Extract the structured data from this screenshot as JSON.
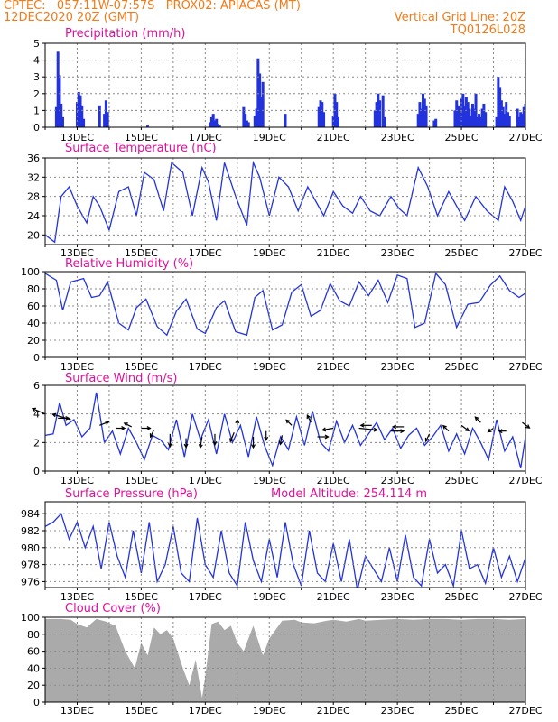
{
  "header": {
    "line1_left": "CPTEC:   057:11W-07:57S   PROX02: APIACAS (MT)",
    "line2_left": "12DEC2020 20Z (GMT)",
    "line2_right": "Vertical Grid Line: 20Z",
    "line3_right": "TQ0126L028"
  },
  "colors": {
    "header_text": "#f07b1a",
    "panel_title": "#e0109a",
    "series": "#2233dd",
    "cloud_fill": "#aaaaaa",
    "wind_arrow": "#000000",
    "grid": "#888888"
  },
  "x_ticks": [
    "13DEC",
    "15DEC",
    "17DEC",
    "19DEC",
    "21DEC",
    "23DEC",
    "25DEC",
    "27DEC"
  ],
  "chart_data": [
    {
      "id": "precip",
      "type": "bar",
      "title": "Precipitation (mm/h)",
      "ylim": [
        0,
        5
      ],
      "yticks": [
        0,
        1,
        2,
        3,
        4,
        5
      ],
      "grid": true,
      "x": [
        0.35,
        0.4,
        0.45,
        0.5,
        0.55,
        1.0,
        1.05,
        1.1,
        1.15,
        1.2,
        1.7,
        1.85,
        1.9,
        1.95,
        3.2,
        5.15,
        5.2,
        5.25,
        5.3,
        5.35,
        5.4,
        5.45,
        6.2,
        6.25,
        6.3,
        6.35,
        6.55,
        6.6,
        6.65,
        6.7,
        6.75,
        6.8,
        7.5,
        8.55,
        8.6,
        8.65,
        8.7,
        9.0,
        9.05,
        9.1,
        9.15,
        10.3,
        10.35,
        10.4,
        10.45,
        10.55,
        10.6,
        11.65,
        11.7,
        11.75,
        11.8,
        11.85,
        11.9,
        12.15,
        12.2,
        12.8,
        12.85,
        12.9,
        12.95,
        13.0,
        13.05,
        13.1,
        13.15,
        13.2,
        13.25,
        13.3,
        13.35,
        13.4,
        13.45,
        13.5,
        13.55,
        13.6,
        13.65,
        13.7,
        13.75,
        14.1,
        14.15,
        14.2,
        14.25,
        14.3,
        14.35,
        14.4,
        14.45,
        14.5,
        14.75,
        14.8,
        14.85,
        14.9,
        14.95,
        15.0,
        15.05,
        15.1
      ],
      "values": [
        1.2,
        4.5,
        3.1,
        1.4,
        0.6,
        1.5,
        2.1,
        1.9,
        1.3,
        0.5,
        1.3,
        0.8,
        1.6,
        0.9,
        0.1,
        0.3,
        0.6,
        0.8,
        0.4,
        0.5,
        0.2,
        0.1,
        1.2,
        0.8,
        0.4,
        0.3,
        0.7,
        1.1,
        4.1,
        3.2,
        1.8,
        2.7,
        0.8,
        1.2,
        1.6,
        1.5,
        0.9,
        0.7,
        2.0,
        1.5,
        0.6,
        1.0,
        1.5,
        2.0,
        1.6,
        1.9,
        0.6,
        0.8,
        1.5,
        1.1,
        2.0,
        1.7,
        1.3,
        0.4,
        0.5,
        1.0,
        1.6,
        1.3,
        0.8,
        1.7,
        2.0,
        1.3,
        1.8,
        1.5,
        1.1,
        0.7,
        1.4,
        1.1,
        2.0,
        0.6,
        0.8,
        0.6,
        1.1,
        1.4,
        0.9,
        0.6,
        3.0,
        2.4,
        1.6,
        1.2,
        0.8,
        1.5,
        0.9,
        0.7,
        1.1,
        0.6,
        0.9,
        0.8,
        1.2,
        1.4,
        1.0,
        0.6
      ]
    },
    {
      "id": "temp",
      "type": "line",
      "title": "Surface Temperature (nC)",
      "ylim": [
        18,
        36
      ],
      "yticks": [
        20,
        24,
        28,
        32,
        36
      ],
      "grid": true,
      "x": [
        0,
        0.3,
        0.5,
        0.75,
        1.0,
        1.3,
        1.5,
        1.7,
        2.0,
        2.3,
        2.6,
        2.85,
        3.1,
        3.4,
        3.7,
        3.95,
        4.3,
        4.6,
        4.9,
        5.1,
        5.35,
        5.6,
        5.95,
        6.3,
        6.5,
        6.7,
        7.0,
        7.3,
        7.6,
        7.9,
        8.2,
        8.45,
        8.7,
        9.0,
        9.3,
        9.6,
        9.85,
        10.15,
        10.45,
        10.8,
        11.05,
        11.3,
        11.65,
        11.95,
        12.25,
        12.6,
        12.85,
        13.1,
        13.45,
        13.8,
        14.15,
        14.35,
        14.6,
        14.85,
        15.0
      ],
      "values": [
        20,
        18.5,
        28,
        30,
        26,
        22.5,
        28,
        26,
        21,
        29,
        30,
        24,
        33,
        31.5,
        25,
        35,
        33,
        24,
        34,
        31,
        23,
        35,
        28,
        22,
        35,
        32,
        24,
        32,
        30,
        25,
        30,
        27,
        24,
        29,
        26,
        24.5,
        28,
        25,
        24,
        28,
        25.5,
        24,
        34,
        30,
        24,
        29,
        26,
        23,
        28,
        25,
        23,
        30,
        27,
        23,
        26
      ]
    },
    {
      "id": "rh",
      "type": "line",
      "title": "Relative Humidity (%)",
      "ylim": [
        0,
        100
      ],
      "yticks": [
        0,
        20,
        40,
        60,
        80,
        100
      ],
      "grid": true,
      "x": [
        0,
        0.35,
        0.55,
        0.8,
        1.2,
        1.45,
        1.7,
        1.95,
        2.3,
        2.6,
        2.85,
        3.15,
        3.5,
        3.8,
        4.1,
        4.4,
        4.75,
        5.0,
        5.35,
        5.6,
        5.95,
        6.3,
        6.55,
        6.8,
        7.1,
        7.4,
        7.7,
        8.0,
        8.3,
        8.6,
        8.9,
        9.2,
        9.5,
        9.8,
        10.1,
        10.4,
        10.7,
        11.0,
        11.3,
        11.55,
        11.85,
        12.2,
        12.5,
        12.85,
        13.2,
        13.55,
        13.9,
        14.2,
        14.5,
        14.8,
        15.0
      ],
      "values": [
        98,
        90,
        55,
        88,
        92,
        70,
        72,
        88,
        40,
        32,
        58,
        68,
        36,
        26,
        54,
        68,
        33,
        28,
        58,
        66,
        30,
        26,
        70,
        78,
        32,
        38,
        76,
        85,
        48,
        55,
        86,
        66,
        60,
        88,
        72,
        90,
        64,
        96,
        92,
        35,
        40,
        98,
        85,
        35,
        62,
        64,
        84,
        95,
        78,
        70,
        75
      ]
    },
    {
      "id": "wind",
      "type": "line",
      "title": "Surface Wind (m/s)",
      "ylim": [
        0,
        6
      ],
      "yticks": [
        0,
        2,
        4,
        6
      ],
      "grid": true,
      "x": [
        0,
        0.25,
        0.45,
        0.65,
        0.9,
        1.15,
        1.4,
        1.6,
        1.85,
        2.1,
        2.35,
        2.6,
        2.85,
        3.1,
        3.35,
        3.6,
        3.85,
        4.1,
        4.35,
        4.6,
        4.85,
        5.1,
        5.35,
        5.6,
        5.85,
        6.1,
        6.35,
        6.6,
        6.85,
        7.1,
        7.35,
        7.6,
        7.85,
        8.1,
        8.35,
        8.6,
        8.85,
        9.1,
        9.35,
        9.6,
        9.85,
        10.1,
        10.35,
        10.6,
        10.85,
        11.1,
        11.35,
        11.6,
        11.85,
        12.1,
        12.35,
        12.6,
        12.85,
        13.1,
        13.35,
        13.6,
        13.85,
        14.1,
        14.35,
        14.6,
        14.85,
        15.0
      ],
      "values": [
        2.5,
        2.6,
        4.8,
        3.2,
        3.6,
        2.4,
        3.0,
        5.5,
        2.0,
        2.8,
        1.2,
        3.0,
        2.0,
        0.8,
        2.5,
        2.2,
        1.5,
        3.6,
        1.0,
        4.0,
        2.2,
        3.6,
        1.2,
        4.0,
        2.0,
        3.2,
        1.0,
        3.8,
        1.8,
        0.4,
        2.4,
        1.5,
        3.8,
        1.8,
        4.2,
        2.0,
        1.4,
        3.5,
        2.0,
        3.2,
        1.8,
        2.6,
        3.4,
        2.2,
        3.0,
        1.6,
        2.5,
        3.0,
        1.8,
        2.4,
        3.2,
        1.4,
        2.6,
        1.2,
        3.0,
        2.0,
        0.8,
        3.6,
        1.4,
        2.4,
        0.2,
        2.4
      ]
    },
    {
      "id": "pressure",
      "type": "line",
      "title": "Surface Pressure (hPa)",
      "annotation": "Model Altitude: 254.114 m",
      "ylim": [
        975.3,
        985.4
      ],
      "yticks": [
        976,
        978,
        980,
        982,
        984
      ],
      "grid": true,
      "x": [
        0,
        0.25,
        0.5,
        0.75,
        1.0,
        1.25,
        1.5,
        1.75,
        2.0,
        2.25,
        2.5,
        2.75,
        3.0,
        3.25,
        3.5,
        3.75,
        4.0,
        4.25,
        4.5,
        4.75,
        5.0,
        5.25,
        5.5,
        5.75,
        6.0,
        6.25,
        6.5,
        6.75,
        7.0,
        7.25,
        7.5,
        7.75,
        8.0,
        8.25,
        8.5,
        8.75,
        9.0,
        9.25,
        9.5,
        9.75,
        10.0,
        10.25,
        10.5,
        10.75,
        11.0,
        11.25,
        11.5,
        11.75,
        12.0,
        12.25,
        12.5,
        12.75,
        13.0,
        13.25,
        13.5,
        13.75,
        14.0,
        14.25,
        14.5,
        14.75,
        15.0
      ],
      "values": [
        982.5,
        983,
        984,
        981,
        983,
        980,
        982.5,
        977.5,
        983,
        979,
        976.5,
        982,
        977,
        983,
        976,
        978,
        982.5,
        977,
        976,
        983.5,
        978,
        976.5,
        982,
        977,
        975.5,
        983,
        978.5,
        976,
        981,
        976.5,
        983,
        978,
        975.5,
        982,
        977,
        976,
        980.5,
        976,
        981,
        975,
        979,
        977.5,
        976,
        980,
        976,
        981.5,
        976.5,
        975.5,
        981,
        977,
        978,
        975.5,
        982,
        977.5,
        978,
        975.8,
        980,
        976.5,
        979,
        976,
        978.8
      ]
    },
    {
      "id": "cloud",
      "type": "area",
      "title": "Cloud Cover (%)",
      "ylim": [
        0,
        100
      ],
      "yticks": [
        0,
        20,
        40,
        60,
        80,
        100
      ],
      "grid": true,
      "x": [
        0,
        0.5,
        0.8,
        1.0,
        1.3,
        1.6,
        1.9,
        2.2,
        2.5,
        2.8,
        3.0,
        3.2,
        3.4,
        3.6,
        3.8,
        4.0,
        4.3,
        4.5,
        4.7,
        4.9,
        5.0,
        5.2,
        5.4,
        5.6,
        5.8,
        6.0,
        6.2,
        6.5,
        6.8,
        7.0,
        7.4,
        7.8,
        8.0,
        8.4,
        8.8,
        9.0,
        9.4,
        9.8,
        10.0,
        10.5,
        11.0,
        11.5,
        12.0,
        12.5,
        13.0,
        13.5,
        14.0,
        14.5,
        15.0
      ],
      "values": [
        98,
        98,
        97,
        92,
        88,
        98,
        95,
        90,
        60,
        40,
        70,
        55,
        88,
        80,
        85,
        75,
        40,
        20,
        50,
        5,
        30,
        92,
        95,
        85,
        90,
        70,
        60,
        90,
        55,
        75,
        96,
        97,
        94,
        93,
        96,
        97,
        95,
        98,
        96,
        97,
        98,
        97,
        98,
        98,
        97,
        98,
        98,
        97,
        98
      ]
    }
  ],
  "wind_arrows": [
    {
      "x": 0.0,
      "y": 4.0,
      "dx": -14,
      "dy": -6
    },
    {
      "x": 0.4,
      "y": 3.7,
      "dx": 12,
      "dy": 0
    },
    {
      "x": 0.8,
      "y": 3.6,
      "dx": -20,
      "dy": -6
    },
    {
      "x": 1.7,
      "y": 3.2,
      "dx": 10,
      "dy": -4
    },
    {
      "x": 2.2,
      "y": 3.0,
      "dx": 10,
      "dy": 0
    },
    {
      "x": 2.7,
      "y": 3.1,
      "dx": -8,
      "dy": -4
    },
    {
      "x": 3.0,
      "y": 3.0,
      "dx": 10,
      "dy": 0
    },
    {
      "x": 3.4,
      "y": 2.9,
      "dx": -4,
      "dy": 8
    },
    {
      "x": 3.9,
      "y": 2.6,
      "dx": 0,
      "dy": 14
    },
    {
      "x": 4.4,
      "y": 2.3,
      "dx": 0,
      "dy": 10
    },
    {
      "x": 4.9,
      "y": 2.4,
      "dx": -2,
      "dy": 12
    },
    {
      "x": 5.3,
      "y": 2.6,
      "dx": 0,
      "dy": 12
    },
    {
      "x": 5.9,
      "y": 2.7,
      "dx": -4,
      "dy": 10
    },
    {
      "x": 6.0,
      "y": 3.2,
      "dx": 0,
      "dy": -6
    },
    {
      "x": 6.5,
      "y": 2.4,
      "dx": 0,
      "dy": 12
    },
    {
      "x": 6.9,
      "y": 2.8,
      "dx": 0,
      "dy": 10
    },
    {
      "x": 7.4,
      "y": 2.5,
      "dx": -2,
      "dy": 10
    },
    {
      "x": 7.7,
      "y": 3.2,
      "dx": -6,
      "dy": -6
    },
    {
      "x": 8.3,
      "y": 3.4,
      "dx": -4,
      "dy": -8
    },
    {
      "x": 8.5,
      "y": 2.4,
      "dx": 12,
      "dy": 0
    },
    {
      "x": 9.0,
      "y": 3.0,
      "dx": -12,
      "dy": 2
    },
    {
      "x": 9.8,
      "y": 3.0,
      "dx": 20,
      "dy": 2
    },
    {
      "x": 10.2,
      "y": 3.2,
      "dx": -12,
      "dy": 0
    },
    {
      "x": 10.8,
      "y": 2.8,
      "dx": 14,
      "dy": 0
    },
    {
      "x": 11.2,
      "y": 3.1,
      "dx": -12,
      "dy": 0
    },
    {
      "x": 12.0,
      "y": 2.6,
      "dx": -4,
      "dy": 8
    },
    {
      "x": 12.6,
      "y": 2.8,
      "dx": -6,
      "dy": -6
    },
    {
      "x": 13.0,
      "y": 3.2,
      "dx": 8,
      "dy": 6
    },
    {
      "x": 13.6,
      "y": 3.4,
      "dx": -6,
      "dy": -6
    },
    {
      "x": 14.0,
      "y": 3.0,
      "dx": -6,
      "dy": 4
    },
    {
      "x": 14.4,
      "y": 2.8,
      "dx": -8,
      "dy": 0
    },
    {
      "x": 14.9,
      "y": 3.4,
      "dx": 8,
      "dy": 6
    }
  ]
}
